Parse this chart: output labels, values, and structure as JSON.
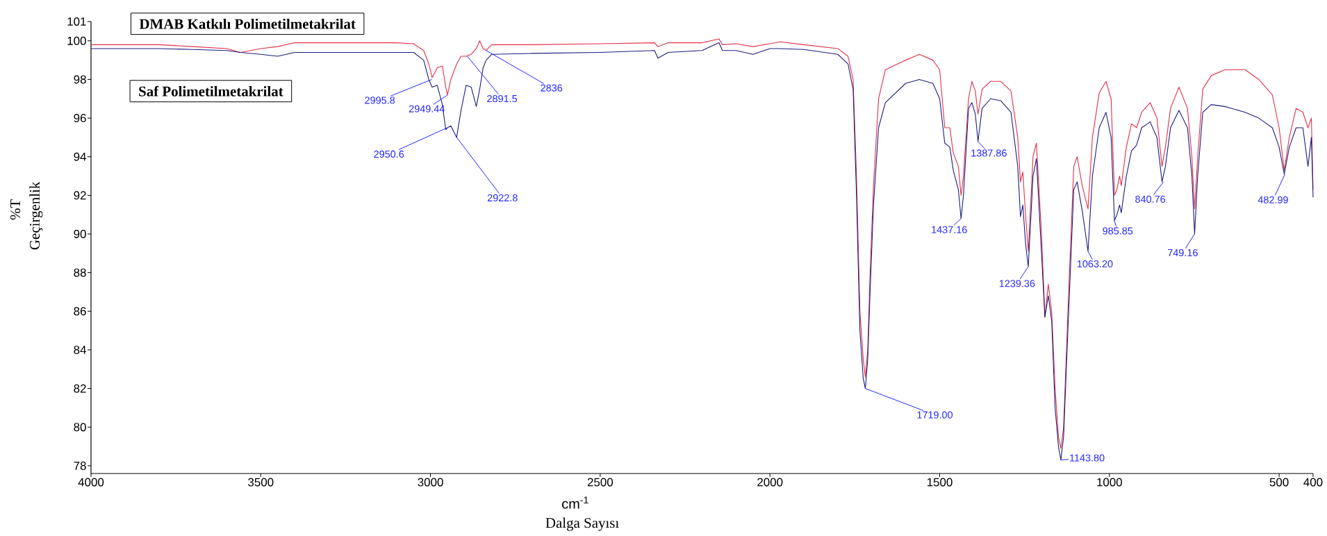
{
  "chart_data": {
    "type": "line",
    "xlabel": "Dalga Sayısı",
    "ylabel": "Geçirgenlik",
    "xlim": [
      4000,
      400
    ],
    "ylim": [
      77.6,
      101
    ],
    "xticks": [
      4000,
      3500,
      3000,
      2500,
      2000,
      1500,
      1000,
      500,
      400
    ],
    "yticks": [
      78,
      80,
      82,
      84,
      86,
      88,
      90,
      92,
      94,
      96,
      98,
      100,
      101
    ],
    "x": [
      4000,
      3800,
      3700,
      3600,
      3560,
      3500,
      3450,
      3400,
      3300,
      3200,
      3100,
      3050,
      3020,
      3005,
      2995,
      2980,
      2965,
      2955,
      2950,
      2940,
      2923,
      2910,
      2895,
      2880,
      2865,
      2855,
      2845,
      2836,
      2820,
      2700,
      2500,
      2340,
      2330,
      2300,
      2200,
      2150,
      2140,
      2100,
      2050,
      2000,
      1970,
      1900,
      1800,
      1770,
      1755,
      1745,
      1735,
      1725,
      1719,
      1712,
      1705,
      1695,
      1680,
      1660,
      1600,
      1560,
      1520,
      1500,
      1485,
      1470,
      1460,
      1445,
      1437,
      1430,
      1415,
      1405,
      1395,
      1387,
      1375,
      1350,
      1320,
      1290,
      1270,
      1262,
      1255,
      1247,
      1239,
      1225,
      1215,
      1200,
      1190,
      1180,
      1170,
      1160,
      1150,
      1143,
      1135,
      1120,
      1105,
      1095,
      1080,
      1063,
      1050,
      1030,
      1010,
      995,
      985,
      978,
      970,
      965,
      950,
      935,
      920,
      905,
      880,
      860,
      845,
      835,
      820,
      795,
      770,
      757,
      749,
      740,
      725,
      700,
      660,
      600,
      560,
      520,
      500,
      485,
      470,
      450,
      430,
      415,
      405,
      400
    ],
    "series": [
      {
        "name": "**DMAB Katkılı Polimetilmetakrilat**",
        "color": "#e0304a",
        "values": [
          99.8,
          99.8,
          99.7,
          99.6,
          99.4,
          99.6,
          99.7,
          99.9,
          99.9,
          99.9,
          99.9,
          99.85,
          99.5,
          98.8,
          98.1,
          98.6,
          98.7,
          97.6,
          97.2,
          98.0,
          98.8,
          99.2,
          99.2,
          99.3,
          99.6,
          100.0,
          99.6,
          99.5,
          99.8,
          99.8,
          99.85,
          99.9,
          99.7,
          99.9,
          99.9,
          100.1,
          99.8,
          99.85,
          99.7,
          99.85,
          99.95,
          99.8,
          99.6,
          99.2,
          98.0,
          93.0,
          86.0,
          83.5,
          82.6,
          84.0,
          88.0,
          92.5,
          97.0,
          98.5,
          99.0,
          99.3,
          99.0,
          98.5,
          95.5,
          95.5,
          94.2,
          93.5,
          92.0,
          93.0,
          97.0,
          97.9,
          97.4,
          96.2,
          97.5,
          97.9,
          97.9,
          97.4,
          95.0,
          92.7,
          93.2,
          91.0,
          89.1,
          94.0,
          94.7,
          90.0,
          85.7,
          87.4,
          86.0,
          82.0,
          79.5,
          78.9,
          80.0,
          87.0,
          93.5,
          94.0,
          92.5,
          91.3,
          95.0,
          97.3,
          97.9,
          97.0,
          92.0,
          92.3,
          93.0,
          92.5,
          94.5,
          95.7,
          95.5,
          96.3,
          96.8,
          96.0,
          93.5,
          94.5,
          96.5,
          97.6,
          96.5,
          94.0,
          91.3,
          94.0,
          97.5,
          98.2,
          98.5,
          98.5,
          98.0,
          97.2,
          95.5,
          93.3,
          95.0,
          96.5,
          96.3,
          95.5,
          96.0,
          92.3
        ]
      },
      {
        "name": "**Saf Polimetilmetakrilat**",
        "color": "#1c1c80",
        "values": [
          99.6,
          99.6,
          99.55,
          99.5,
          99.4,
          99.3,
          99.2,
          99.4,
          99.4,
          99.4,
          99.4,
          99.4,
          99.0,
          98.0,
          97.6,
          97.7,
          96.7,
          95.4,
          95.5,
          95.6,
          95.0,
          96.4,
          97.7,
          97.6,
          96.6,
          97.5,
          98.6,
          99.0,
          99.3,
          99.35,
          99.4,
          99.5,
          99.1,
          99.4,
          99.5,
          99.9,
          99.5,
          99.5,
          99.3,
          99.6,
          99.6,
          99.55,
          99.3,
          98.8,
          97.5,
          92.0,
          85.0,
          82.5,
          82.0,
          83.5,
          87.0,
          91.5,
          95.5,
          96.8,
          97.8,
          98.0,
          97.8,
          97.0,
          94.7,
          94.5,
          93.3,
          92.3,
          90.8,
          92.0,
          96.5,
          96.8,
          96.2,
          94.8,
          96.5,
          97.0,
          96.9,
          96.3,
          93.5,
          90.9,
          91.5,
          89.5,
          88.3,
          93.0,
          93.9,
          89.0,
          85.7,
          86.8,
          85.5,
          81.0,
          79.0,
          78.3,
          79.5,
          86.0,
          92.3,
          92.7,
          91.2,
          89.1,
          93.0,
          95.5,
          96.3,
          95.0,
          90.7,
          91.0,
          91.5,
          91.1,
          93.0,
          94.3,
          94.6,
          95.5,
          95.8,
          95.0,
          92.7,
          93.5,
          95.5,
          96.4,
          95.5,
          93.0,
          90.0,
          93.0,
          96.3,
          96.7,
          96.6,
          96.3,
          96.0,
          95.5,
          94.5,
          93.1,
          94.5,
          95.5,
          95.5,
          93.5,
          95.0,
          91.9
        ]
      }
    ],
    "annotations": [
      {
        "text": "2995.8",
        "x": 2995.8,
        "y": 98.0
      },
      {
        "text": "2949.44",
        "x": 2949.44,
        "y": 97.2
      },
      {
        "text": "2891.5",
        "x": 2891.5,
        "y": 99.2
      },
      {
        "text": "2836",
        "x": 2836,
        "y": 99.5
      },
      {
        "text": "2950.6",
        "x": 2950.6,
        "y": 95.5
      },
      {
        "text": "2922.8",
        "x": 2922.8,
        "y": 95.0
      },
      {
        "text": "1719.00",
        "x": 1719.0,
        "y": 82.0
      },
      {
        "text": "1437.16",
        "x": 1437.16,
        "y": 90.8
      },
      {
        "text": "1387.86",
        "x": 1387.86,
        "y": 94.8
      },
      {
        "text": "1239.36",
        "x": 1239.36,
        "y": 88.3
      },
      {
        "text": "1143.80",
        "x": 1143.8,
        "y": 78.3
      },
      {
        "text": "1063.20",
        "x": 1063.2,
        "y": 89.1
      },
      {
        "text": "985.85",
        "x": 985.85,
        "y": 90.7
      },
      {
        "text": "840.76",
        "x": 840.76,
        "y": 92.7
      },
      {
        "text": "749.16",
        "x": 749.16,
        "y": 90.0
      },
      {
        "text": "482.99",
        "x": 482.99,
        "y": 93.1
      },
      "cm$^{-1}$",
      "%T"
    ]
  }
}
